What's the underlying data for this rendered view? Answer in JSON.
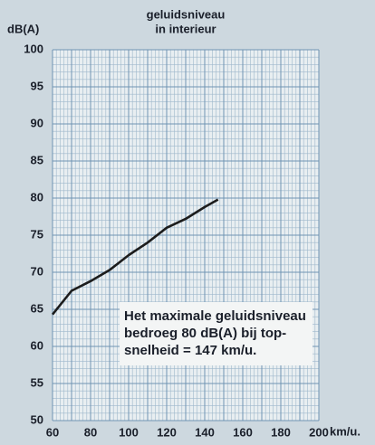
{
  "chart_data": {
    "type": "line",
    "title_lines": [
      "geluidsniveau",
      "in interieur"
    ],
    "ylabel": "dB(A)",
    "xlabel": "km/u.",
    "x": [
      60,
      70,
      80,
      90,
      100,
      110,
      120,
      130,
      140,
      147
    ],
    "series": [
      {
        "name": "geluidsniveau in interieur",
        "color": "#1c1c1c",
        "values": [
          64.3,
          67.5,
          68.8,
          70.3,
          72.3,
          74,
          76,
          77.2,
          78.8,
          79.8
        ]
      }
    ],
    "xlim": [
      60,
      200
    ],
    "xticks": [
      60,
      80,
      100,
      120,
      140,
      160,
      180,
      200
    ],
    "ylim": [
      50,
      100
    ],
    "yticks": [
      50,
      55,
      60,
      65,
      70,
      75,
      80,
      85,
      90,
      95,
      100
    ],
    "grid": true,
    "annotation": [
      "Het maximale geluidsniveau",
      "bedroeg 80 dB(A) bij top-",
      "snelheid = 147 km/u."
    ]
  }
}
